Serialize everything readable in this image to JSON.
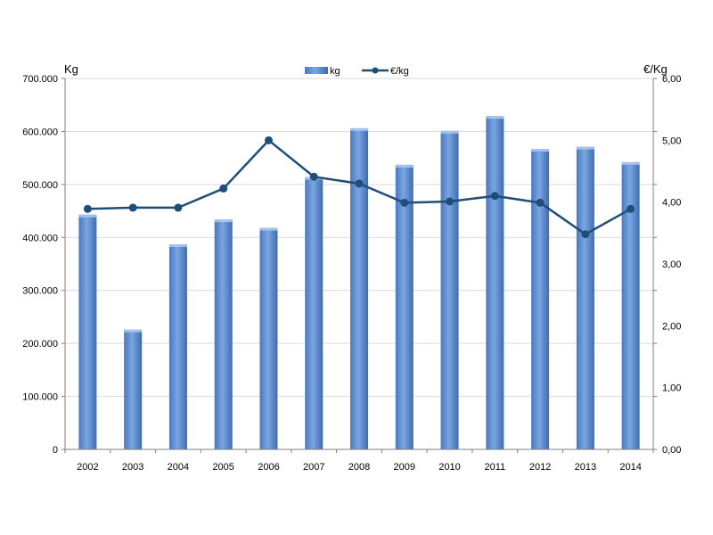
{
  "chart_data": {
    "type": "bar",
    "categories": [
      "2002",
      "2003",
      "2004",
      "2005",
      "2006",
      "2007",
      "2008",
      "2009",
      "2010",
      "2011",
      "2012",
      "2013",
      "2014"
    ],
    "series": [
      {
        "name": "kg",
        "type": "bar",
        "axis": "left",
        "color": "#5b8bd0",
        "values": [
          443000,
          226000,
          387000,
          434000,
          418000,
          514000,
          606000,
          537000,
          601000,
          629000,
          567000,
          571000,
          542000
        ]
      },
      {
        "name": "€/kg",
        "type": "line",
        "axis": "right",
        "color": "#1f4e79",
        "values": [
          3.89,
          3.91,
          3.91,
          4.22,
          5.0,
          4.41,
          4.3,
          3.99,
          4.01,
          4.1,
          3.99,
          3.48,
          3.89
        ]
      }
    ],
    "ylabel_left": "Kg",
    "ylabel_right": "€/Kg",
    "ylim_left": [
      0,
      700000
    ],
    "ylim_right": [
      0,
      6
    ],
    "yticks_left": [
      "0",
      "100.000",
      "200.000",
      "300.000",
      "400.000",
      "500.000",
      "600.000",
      "700.000"
    ],
    "yticks_right": [
      "0,00",
      "1,00",
      "2,00",
      "3,00",
      "4,00",
      "5,00",
      "6,00"
    ],
    "grid": "horizontal",
    "legend_position": "top-center"
  }
}
